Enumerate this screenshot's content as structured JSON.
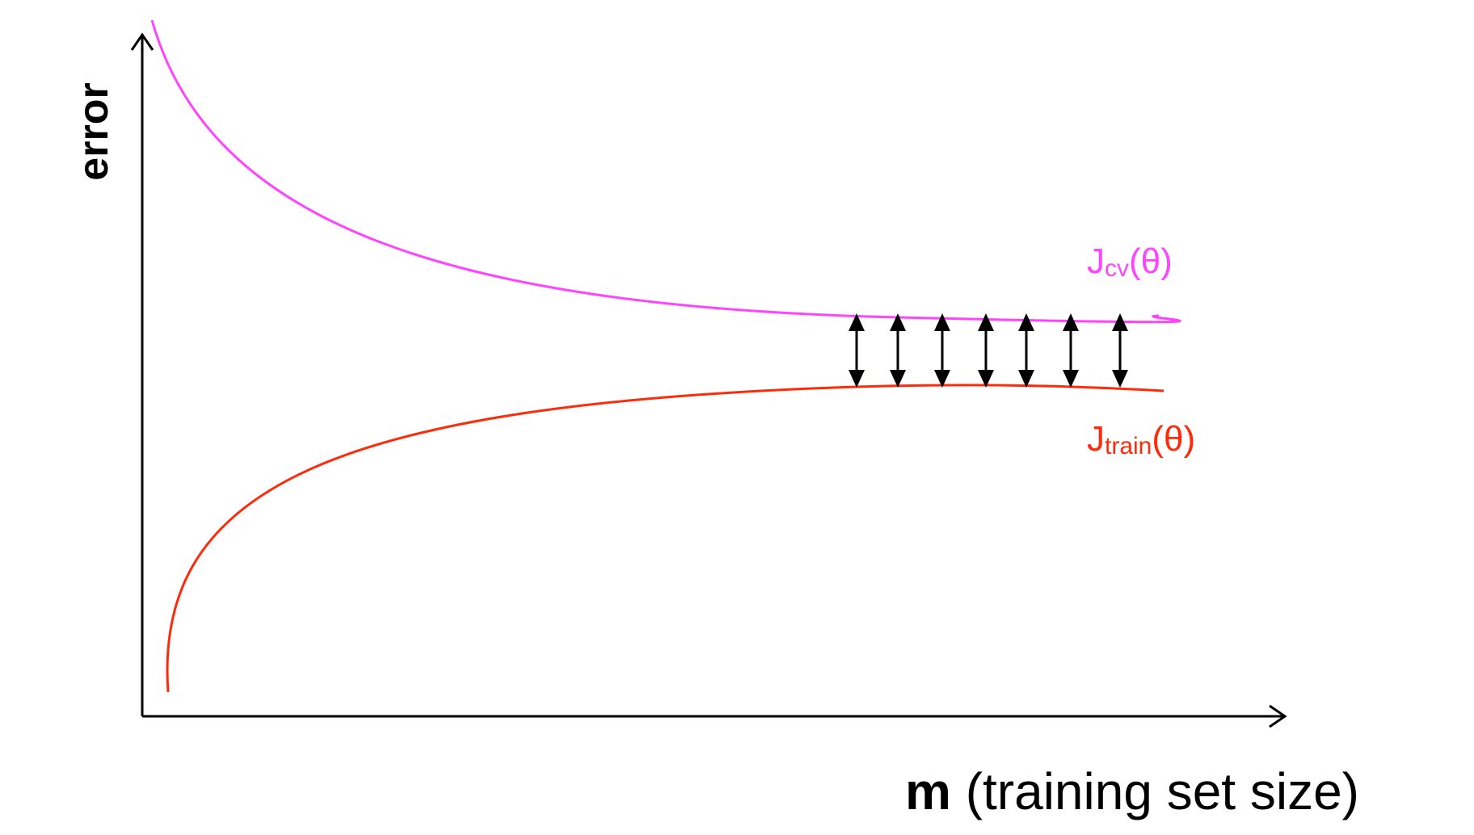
{
  "axes": {
    "y_label": "error",
    "x_label_bold": "m",
    "x_label_rest": " (training set size)"
  },
  "curves": {
    "cv": {
      "label_main": "J",
      "label_sub": "cv",
      "label_tail": "(θ)",
      "color": "#ff44ff"
    },
    "train": {
      "label_main": "J",
      "label_sub": "train",
      "label_tail": "(θ)",
      "color": "#ff2a0a"
    }
  },
  "gap_arrows": {
    "count": 7,
    "color": "#000000"
  },
  "colors": {
    "axis": "#000000",
    "background": "#ffffff"
  }
}
